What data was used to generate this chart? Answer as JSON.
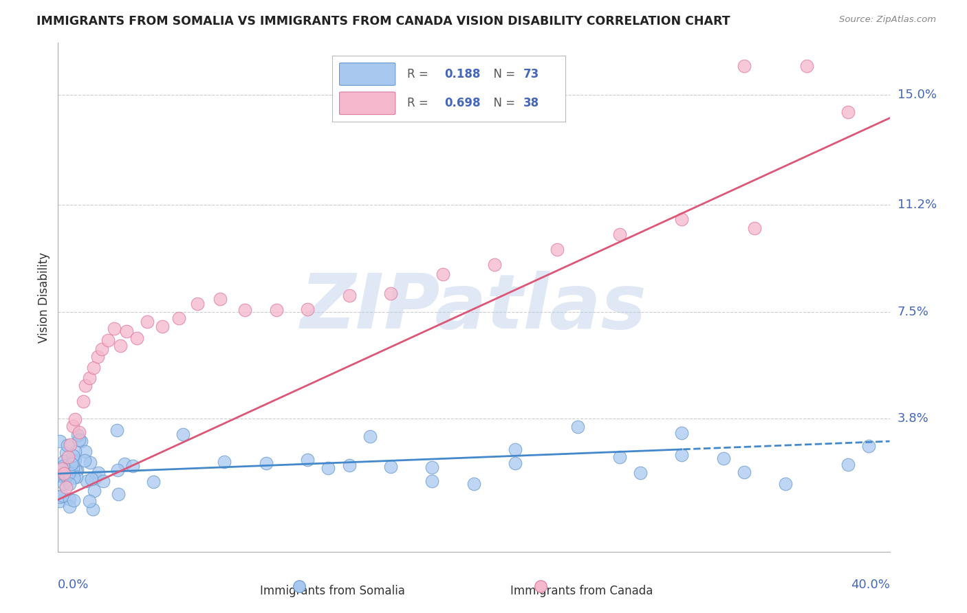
{
  "title": "IMMIGRANTS FROM SOMALIA VS IMMIGRANTS FROM CANADA VISION DISABILITY CORRELATION CHART",
  "source": "Source: ZipAtlas.com",
  "ylabel": "Vision Disability",
  "xlim": [
    0.0,
    0.4
  ],
  "ylim": [
    -0.008,
    0.168
  ],
  "watermark": "ZIPatlas",
  "somalia_color": "#a8c8f0",
  "canada_color": "#f5b8cc",
  "somalia_edge": "#6699cc",
  "canada_edge": "#dd7799",
  "background_color": "#ffffff",
  "grid_color": "#cccccc",
  "tick_label_color": "#4466bb",
  "title_color": "#222222",
  "regression_somalia_color": "#4488cc",
  "regression_canada_color": "#dd5577",
  "ytick_vals": [
    0.038,
    0.075,
    0.112,
    0.15
  ],
  "ytick_labels": [
    "3.8%",
    "7.5%",
    "11.2%",
    "15.0%"
  ],
  "legend_somalia": "R =  0.188   N = 73",
  "legend_canada": "R =  0.698   N = 38",
  "legend_r1_val": "0.188",
  "legend_n1_val": "73",
  "legend_r2_val": "0.698",
  "legend_n2_val": "38"
}
